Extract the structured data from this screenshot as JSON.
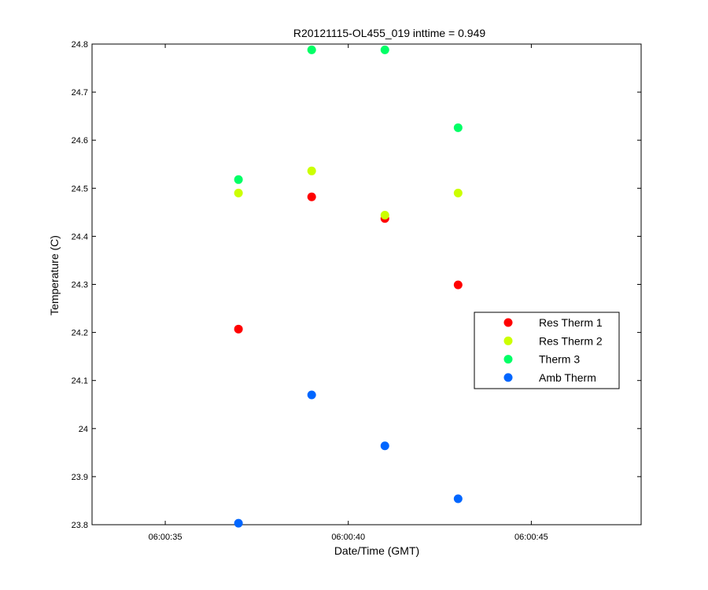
{
  "chart_data": {
    "type": "scatter",
    "title": "R20121115-OL455_019 inttime = 0.949",
    "xlabel": "Date/Time (GMT)",
    "ylabel": "Temperature (C)",
    "xlim": [
      "06:00:33",
      "06:00:48"
    ],
    "ylim": [
      23.8,
      24.8
    ],
    "xticks": [
      "06:00:35",
      "06:00:40",
      "06:00:45"
    ],
    "yticks": [
      "23.8",
      "23.9",
      "24",
      "24.1",
      "24.2",
      "24.3",
      "24.4",
      "24.5",
      "24.6",
      "24.7",
      "24.8"
    ],
    "grid": false,
    "legend_position": "right",
    "series": [
      {
        "name": "Res Therm 1",
        "color": "#ff0000",
        "points": [
          {
            "x": "06:00:37",
            "y": 24.207
          },
          {
            "x": "06:00:39",
            "y": 24.482
          },
          {
            "x": "06:00:41",
            "y": 24.437
          },
          {
            "x": "06:00:43",
            "y": 24.299
          }
        ]
      },
      {
        "name": "Res Therm 2",
        "color": "#ccff00",
        "points": [
          {
            "x": "06:00:37",
            "y": 24.49
          },
          {
            "x": "06:00:39",
            "y": 24.536
          },
          {
            "x": "06:00:41",
            "y": 24.444
          },
          {
            "x": "06:00:43",
            "y": 24.49
          }
        ]
      },
      {
        "name": "Therm 3",
        "color": "#00ff66",
        "points": [
          {
            "x": "06:00:37",
            "y": 24.518
          },
          {
            "x": "06:00:39",
            "y": 24.788
          },
          {
            "x": "06:00:41",
            "y": 24.788
          },
          {
            "x": "06:00:43",
            "y": 24.626
          }
        ]
      },
      {
        "name": "Amb Therm",
        "color": "#0066ff",
        "points": [
          {
            "x": "06:00:37",
            "y": 23.803
          },
          {
            "x": "06:00:39",
            "y": 24.07
          },
          {
            "x": "06:00:41",
            "y": 23.964
          },
          {
            "x": "06:00:43",
            "y": 23.854
          }
        ]
      }
    ]
  }
}
